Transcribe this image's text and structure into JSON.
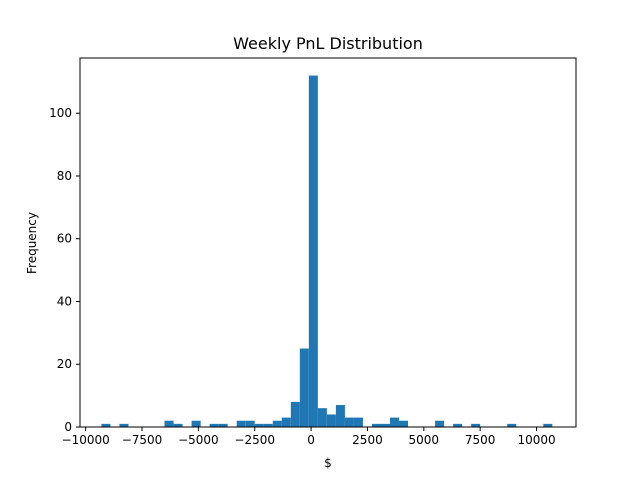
{
  "chart_data": {
    "type": "bar",
    "title": "Weekly PnL Distribution",
    "xlabel": "$",
    "ylabel": "Frequency",
    "xlim": [
      -10250,
      11750
    ],
    "ylim": [
      0,
      117.6
    ],
    "xticks": [
      -10000,
      -7500,
      -5000,
      -2500,
      0,
      2500,
      5000,
      7500,
      10000
    ],
    "xtick_labels": [
      "−10000",
      "−7500",
      "−5000",
      "−2500",
      "0",
      "2500",
      "5000",
      "7500",
      "10000"
    ],
    "yticks": [
      0,
      20,
      40,
      60,
      80,
      100
    ],
    "ytick_labels": [
      "0",
      "20",
      "40",
      "60",
      "80",
      "100"
    ],
    "grid": false,
    "bar_color": "#1f77b4",
    "bins": [
      {
        "x0": -9300,
        "x1": -8900,
        "count": 1
      },
      {
        "x0": -8500,
        "x1": -8100,
        "count": 1
      },
      {
        "x0": -6500,
        "x1": -6100,
        "count": 2
      },
      {
        "x0": -6100,
        "x1": -5700,
        "count": 1
      },
      {
        "x0": -5300,
        "x1": -4900,
        "count": 2
      },
      {
        "x0": -4500,
        "x1": -4100,
        "count": 1
      },
      {
        "x0": -4100,
        "x1": -3700,
        "count": 1
      },
      {
        "x0": -3300,
        "x1": -2900,
        "count": 2
      },
      {
        "x0": -2900,
        "x1": -2500,
        "count": 2
      },
      {
        "x0": -2500,
        "x1": -2100,
        "count": 1
      },
      {
        "x0": -2100,
        "x1": -1700,
        "count": 1
      },
      {
        "x0": -1700,
        "x1": -1300,
        "count": 2
      },
      {
        "x0": -1300,
        "x1": -900,
        "count": 3
      },
      {
        "x0": -900,
        "x1": -500,
        "count": 8
      },
      {
        "x0": -500,
        "x1": -100,
        "count": 25
      },
      {
        "x0": -100,
        "x1": 300,
        "count": 112
      },
      {
        "x0": 300,
        "x1": 700,
        "count": 6
      },
      {
        "x0": 700,
        "x1": 1100,
        "count": 4
      },
      {
        "x0": 1100,
        "x1": 1500,
        "count": 7
      },
      {
        "x0": 1500,
        "x1": 1900,
        "count": 3
      },
      {
        "x0": 1900,
        "x1": 2300,
        "count": 3
      },
      {
        "x0": 2700,
        "x1": 3100,
        "count": 1
      },
      {
        "x0": 3100,
        "x1": 3500,
        "count": 1
      },
      {
        "x0": 3500,
        "x1": 3900,
        "count": 3
      },
      {
        "x0": 3900,
        "x1": 4300,
        "count": 2
      },
      {
        "x0": 5500,
        "x1": 5900,
        "count": 2
      },
      {
        "x0": 6300,
        "x1": 6700,
        "count": 1
      },
      {
        "x0": 7100,
        "x1": 7500,
        "count": 1
      },
      {
        "x0": 8700,
        "x1": 9100,
        "count": 1
      },
      {
        "x0": 10300,
        "x1": 10700,
        "count": 1
      }
    ]
  }
}
